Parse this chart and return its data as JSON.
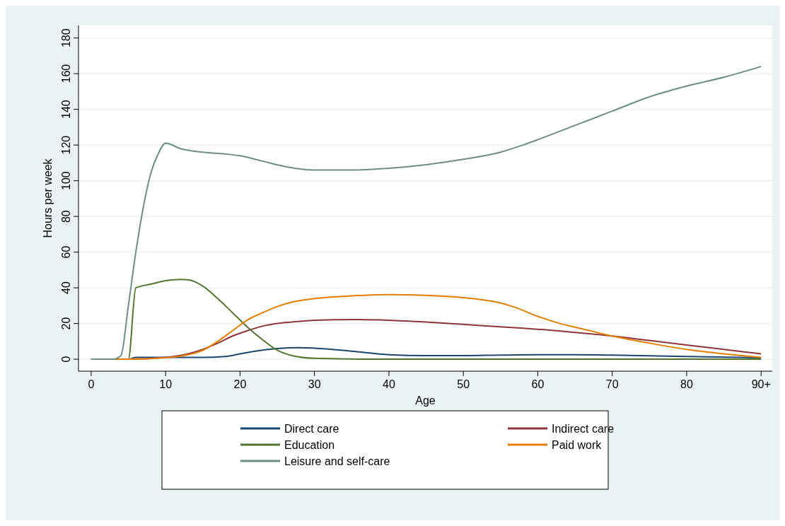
{
  "chart_data": {
    "type": "line",
    "xlabel": "Age",
    "ylabel": "Hours per week",
    "xlim": [
      -1.7,
      91.5
    ],
    "ylim": [
      -6.7,
      187
    ],
    "xticks": [
      0,
      10,
      20,
      30,
      40,
      50,
      60,
      70,
      80,
      {
        "value": 90,
        "label": "90+"
      }
    ],
    "yticks": [
      0,
      20,
      40,
      60,
      80,
      100,
      120,
      140,
      160,
      180
    ],
    "grid": "y",
    "legend": "bottom",
    "line_style": "solid",
    "marker": "none",
    "series": [
      {
        "name": "Direct care",
        "color": "#1a476f",
        "x": [
          0,
          5,
          6,
          10,
          15,
          18,
          20,
          22,
          25,
          28,
          30,
          35,
          40,
          45,
          50,
          55,
          60,
          65,
          70,
          80,
          90
        ],
        "values": [
          0,
          0,
          1,
          1,
          1,
          1.5,
          3,
          4.5,
          6,
          6.5,
          6.2,
          4.5,
          2.5,
          2,
          2,
          2.3,
          2.5,
          2.5,
          2.3,
          1.5,
          0.8
        ]
      },
      {
        "name": "Indirect care",
        "color": "#90353b",
        "x": [
          0,
          5,
          10,
          13,
          15,
          17,
          19,
          21,
          23,
          25,
          28,
          30,
          35,
          40,
          45,
          50,
          55,
          60,
          65,
          70,
          75,
          80,
          85,
          90
        ],
        "values": [
          0,
          0,
          1,
          3,
          5.5,
          9,
          13,
          16,
          18.5,
          20,
          21.2,
          21.8,
          22.2,
          21.8,
          20.8,
          19.5,
          18.2,
          16.8,
          15,
          13,
          10.5,
          8,
          5.5,
          3
        ]
      },
      {
        "name": "Education",
        "color": "#55752f",
        "x": [
          0,
          5,
          6,
          8,
          10,
          12,
          13,
          15,
          17,
          19,
          21,
          23,
          25,
          27,
          30,
          40,
          90
        ],
        "values": [
          0,
          0,
          40,
          42,
          44,
          44.7,
          44.5,
          41,
          34,
          26,
          18,
          11,
          5,
          2,
          0.5,
          0,
          0
        ]
      },
      {
        "name": "Paid work",
        "color": "#e37e00",
        "x": [
          0,
          5,
          10,
          13,
          15,
          17,
          19,
          21,
          23,
          25,
          27,
          30,
          35,
          40,
          45,
          50,
          55,
          57,
          60,
          63,
          66,
          70,
          75,
          80,
          85,
          90
        ],
        "values": [
          0,
          0,
          0.8,
          2.5,
          5,
          10,
          16,
          22,
          26,
          29.5,
          32,
          34,
          35.5,
          36.2,
          35.8,
          34.5,
          31.5,
          29,
          24,
          20,
          17,
          13,
          9,
          5.5,
          3,
          1
        ]
      },
      {
        "name": "Leisure and self-care",
        "color": "#6e8e84",
        "x": [
          0,
          3,
          4,
          5,
          6,
          7,
          8,
          9,
          10,
          12,
          15,
          18,
          20,
          23,
          26,
          30,
          35,
          40,
          45,
          50,
          55,
          58,
          60,
          65,
          70,
          75,
          80,
          85,
          90
        ],
        "values": [
          0,
          0,
          2,
          30,
          60,
          85,
          104,
          115,
          121,
          118,
          116,
          115,
          114,
          111,
          108,
          106,
          106,
          107,
          109,
          112,
          116,
          120,
          123,
          131,
          139,
          147,
          153,
          158,
          164
        ]
      }
    ]
  }
}
